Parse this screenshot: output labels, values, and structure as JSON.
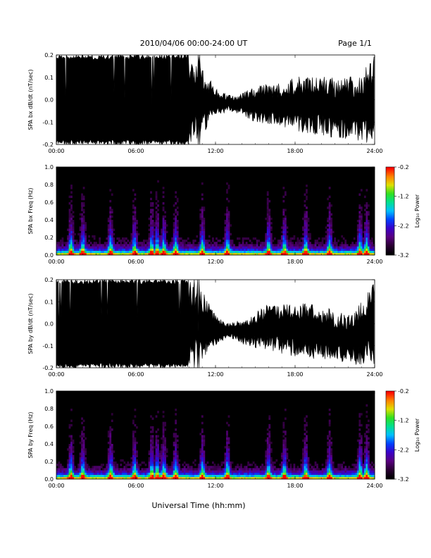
{
  "header": {
    "title": "2010/04/06  00:00-24:00 UT",
    "page": "Page 1/1"
  },
  "xlabel": "Universal Time (hh:mm)",
  "colorbar": {
    "label": "Log₁₀ Power",
    "ticks": [
      "-0.2",
      "-1.2",
      "-2.2",
      "-3.2"
    ],
    "range": [
      -3.2,
      -0.2
    ],
    "colormap": [
      "#000000",
      "#2a0033",
      "#5a0080",
      "#3b00c8",
      "#0040ff",
      "#00c0ff",
      "#00e090",
      "#30e020",
      "#e0e000",
      "#ff8000",
      "#ff0000"
    ]
  },
  "chart_data": [
    {
      "type": "line",
      "ylabel": "SPA bx dB/dt (nT/sec)",
      "x_unit": "UT hours",
      "xlim": [
        0,
        24
      ],
      "ylim": [
        -0.2,
        0.2
      ],
      "xticks": [
        "00:00",
        "06:00",
        "12:00",
        "18:00",
        "24:00"
      ],
      "yticks": [
        "0.2",
        "0.1",
        "0.0",
        "-0.1",
        "-0.2"
      ],
      "envelope": {
        "x": [
          0,
          1,
          2,
          3,
          4,
          5,
          6,
          7,
          8,
          9,
          10,
          11,
          12,
          13,
          14,
          15,
          16,
          17,
          18,
          19,
          20,
          21,
          22,
          23,
          24
        ],
        "upper": [
          0.2,
          0.2,
          0.2,
          0.2,
          0.2,
          0.2,
          0.2,
          0.2,
          0.2,
          0.2,
          0.2,
          0.16,
          0.05,
          0.02,
          0.03,
          0.06,
          0.07,
          0.08,
          0.1,
          0.11,
          0.11,
          0.1,
          0.1,
          0.12,
          0.2
        ],
        "lower": [
          -0.2,
          -0.2,
          -0.2,
          -0.2,
          -0.2,
          -0.2,
          -0.2,
          -0.2,
          -0.2,
          -0.2,
          -0.2,
          -0.16,
          -0.08,
          -0.05,
          -0.07,
          -0.1,
          -0.11,
          -0.12,
          -0.14,
          -0.15,
          -0.16,
          -0.17,
          -0.18,
          -0.19,
          -0.2
        ]
      }
    },
    {
      "type": "heatmap",
      "ylabel": "SPA bx Freq (Hz)",
      "x_unit": "UT hours",
      "xlim": [
        0,
        24
      ],
      "ylim": [
        0,
        1.0
      ],
      "xticks": [
        "00:00",
        "06:00",
        "12:00",
        "18:00",
        "24:00"
      ],
      "yticks": [
        "1.0",
        "0.8",
        "0.6",
        "0.4",
        "0.2",
        "0.0"
      ],
      "zlabel": "Log₁₀ Power",
      "zlim": [
        -3.2,
        -0.2
      ],
      "activity_hours": [
        1.1,
        2.0,
        4.1,
        5.9,
        7.2,
        7.6,
        8.1,
        9.0,
        11.0,
        12.9,
        16.0,
        17.2,
        18.8,
        20.6,
        22.9,
        23.4
      ]
    },
    {
      "type": "line",
      "ylabel": "SPA by dB/dt (nT/sec)",
      "x_unit": "UT hours",
      "xlim": [
        0,
        24
      ],
      "ylim": [
        -0.2,
        0.2
      ],
      "xticks": [
        "00:00",
        "06:00",
        "12:00",
        "18:00",
        "24:00"
      ],
      "yticks": [
        "0.2",
        "0.1",
        "0.0",
        "-0.1",
        "-0.2"
      ],
      "envelope": {
        "x": [
          0,
          1,
          2,
          3,
          4,
          5,
          6,
          7,
          8,
          9,
          10,
          11,
          12,
          13,
          14,
          15,
          16,
          17,
          18,
          19,
          20,
          21,
          22,
          23,
          24
        ],
        "upper": [
          0.2,
          0.2,
          0.2,
          0.2,
          0.2,
          0.2,
          0.2,
          0.2,
          0.2,
          0.2,
          0.2,
          0.15,
          0.04,
          0.0,
          0.02,
          0.05,
          0.09,
          0.1,
          0.1,
          0.09,
          0.08,
          0.06,
          0.04,
          0.1,
          0.2
        ],
        "lower": [
          -0.2,
          -0.2,
          -0.2,
          -0.2,
          -0.2,
          -0.2,
          -0.2,
          -0.2,
          -0.2,
          -0.2,
          -0.2,
          -0.17,
          -0.1,
          -0.06,
          -0.09,
          -0.11,
          -0.12,
          -0.14,
          -0.15,
          -0.16,
          -0.16,
          -0.17,
          -0.18,
          -0.19,
          -0.2
        ]
      }
    },
    {
      "type": "heatmap",
      "ylabel": "SPA by Freq (Hz)",
      "x_unit": "UT hours",
      "xlim": [
        0,
        24
      ],
      "ylim": [
        0,
        1.0
      ],
      "xticks": [
        "00:00",
        "06:00",
        "12:00",
        "18:00",
        "24:00"
      ],
      "yticks": [
        "1.0",
        "0.8",
        "0.6",
        "0.4",
        "0.2",
        "0.0"
      ],
      "zlabel": "Log₁₀ Power",
      "zlim": [
        -3.2,
        -0.2
      ],
      "activity_hours": [
        1.1,
        2.0,
        4.1,
        5.9,
        7.2,
        7.6,
        8.1,
        9.0,
        11.0,
        12.9,
        16.0,
        17.2,
        18.8,
        20.6,
        22.9,
        23.4
      ]
    }
  ]
}
